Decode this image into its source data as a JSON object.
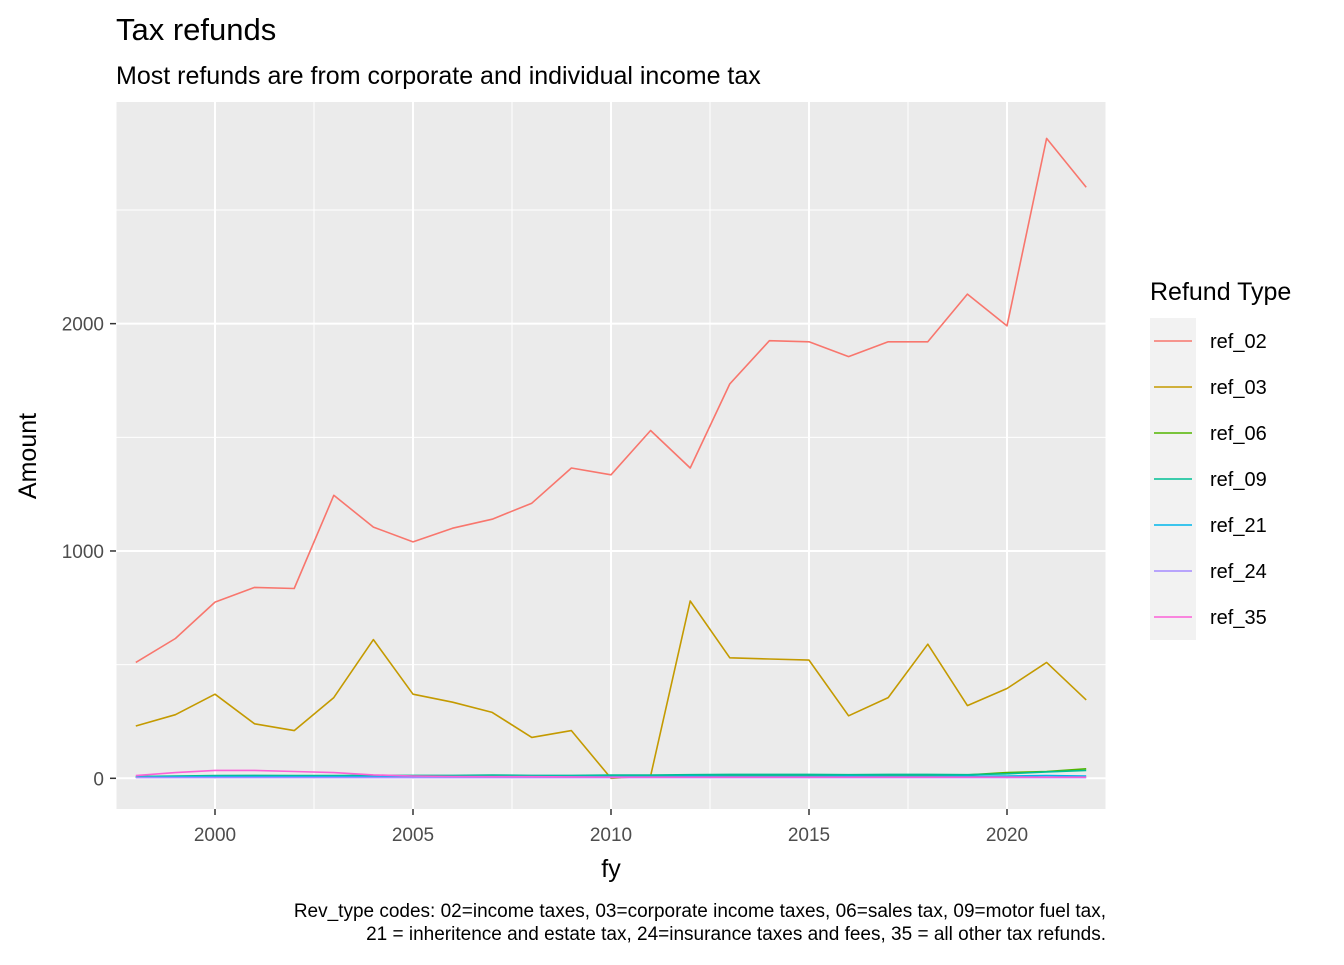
{
  "chart_data": {
    "type": "line",
    "title": "Tax refunds",
    "subtitle": "Most refunds are from corporate and individual income tax",
    "xlabel": "fy",
    "ylabel": "Amount",
    "caption_lines": [
      "Rev_type codes: 02=income taxes, 03=corporate income taxes, 06=sales tax, 09=motor fuel tax,",
      "21 = inheritence and estate tax, 24=insurance taxes and fees, 35 = all other tax refunds."
    ],
    "legend_title": "Refund Type",
    "legend_position": "right",
    "grid": true,
    "xlim": [
      1997.5,
      2022.5
    ],
    "ylim": [
      -135,
      2975
    ],
    "x_ticks": [
      2000,
      2005,
      2010,
      2015,
      2020
    ],
    "y_ticks": [
      0,
      1000,
      2000
    ],
    "x": [
      1998,
      1999,
      2000,
      2001,
      2002,
      2003,
      2004,
      2005,
      2006,
      2007,
      2008,
      2009,
      2010,
      2011,
      2012,
      2013,
      2014,
      2015,
      2016,
      2017,
      2018,
      2019,
      2020,
      2021,
      2022
    ],
    "series": [
      {
        "name": "ref_02",
        "color": "#F8766D",
        "values": [
          510,
          615,
          775,
          840,
          835,
          1245,
          1105,
          1040,
          1100,
          1140,
          1210,
          1365,
          1335,
          1530,
          1365,
          1735,
          1925,
          1920,
          1855,
          1920,
          1920,
          2130,
          1990,
          2815,
          2600
        ]
      },
      {
        "name": "ref_03",
        "color": "#C49A00",
        "values": [
          230,
          280,
          370,
          240,
          210,
          355,
          610,
          370,
          335,
          290,
          180,
          210,
          0,
          10,
          780,
          530,
          525,
          520,
          275,
          355,
          590,
          320,
          395,
          510,
          345
        ]
      },
      {
        "name": "ref_06",
        "color": "#53B400",
        "values": [
          5,
          6,
          7,
          8,
          8,
          9,
          9,
          10,
          10,
          10,
          10,
          10,
          11,
          11,
          12,
          12,
          12,
          13,
          13,
          14,
          14,
          15,
          25,
          30,
          42
        ]
      },
      {
        "name": "ref_09",
        "color": "#00C094",
        "values": [
          8,
          10,
          12,
          13,
          12,
          12,
          13,
          13,
          13,
          14,
          13,
          13,
          14,
          14,
          16,
          17,
          17,
          17,
          16,
          17,
          17,
          16,
          20,
          28,
          35
        ]
      },
      {
        "name": "ref_21",
        "color": "#00B6EB",
        "values": [
          5,
          6,
          7,
          7,
          7,
          7,
          7,
          8,
          8,
          8,
          8,
          8,
          8,
          8,
          9,
          9,
          9,
          9,
          9,
          9,
          9,
          9,
          10,
          12,
          10
        ]
      },
      {
        "name": "ref_24",
        "color": "#A58AFF",
        "values": [
          3,
          3,
          3,
          3,
          3,
          3,
          3,
          3,
          3,
          3,
          3,
          3,
          3,
          3,
          3,
          3,
          3,
          3,
          3,
          3,
          3,
          3,
          3,
          3,
          3
        ]
      },
      {
        "name": "ref_35",
        "color": "#FB61D7",
        "values": [
          12,
          25,
          35,
          35,
          30,
          25,
          15,
          10,
          8,
          7,
          7,
          6,
          5,
          5,
          5,
          5,
          5,
          5,
          5,
          5,
          5,
          5,
          5,
          5,
          5
        ]
      }
    ]
  }
}
